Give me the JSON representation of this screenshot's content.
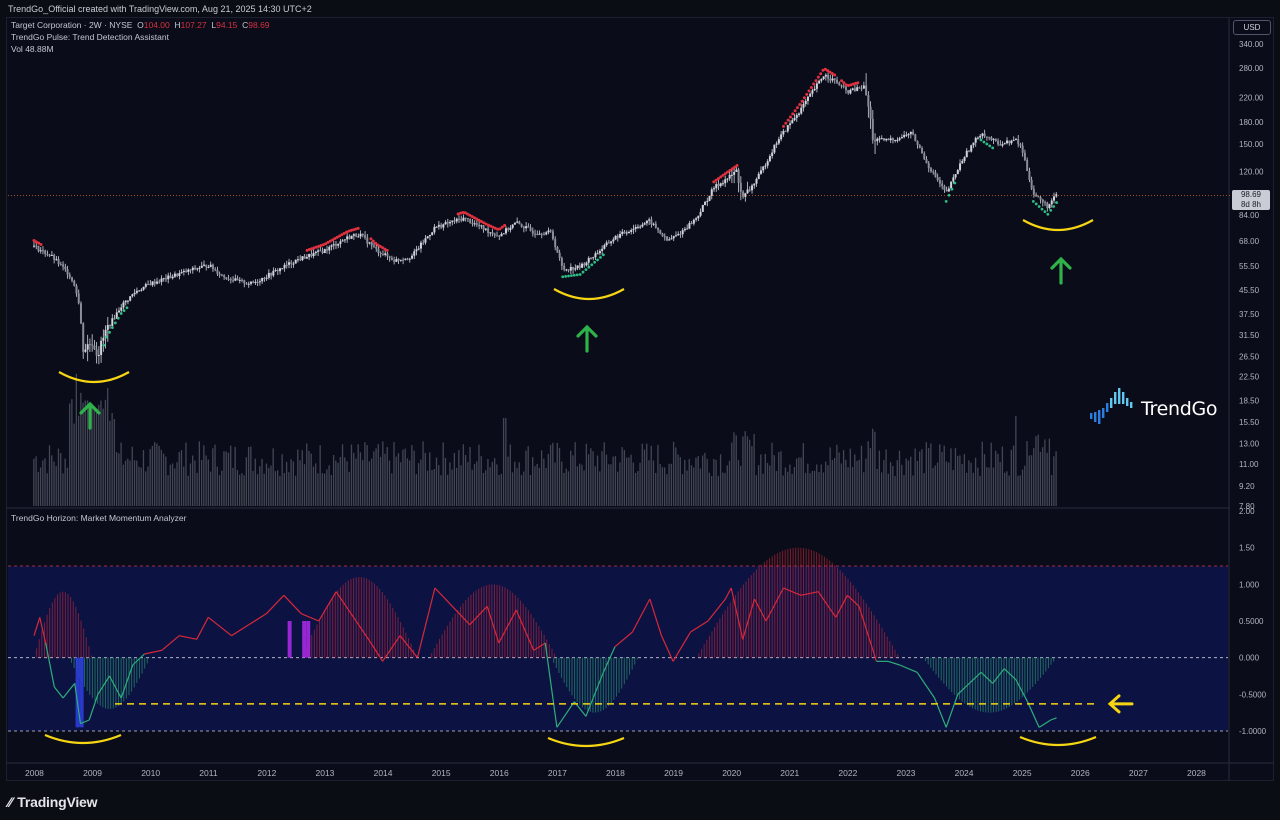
{
  "header": {
    "credit": "TrendGo_Official created with TradingView.com, Aug 21, 2025 14:30 UTC+2"
  },
  "legend": {
    "symbol": "Target Corporation · 2W · NYSE",
    "o_label": "O",
    "o_value": "104.00",
    "h_label": "H",
    "h_value": "107.27",
    "l_label": "L",
    "l_value": "94.15",
    "c_label": "C",
    "c_value": "98.69",
    "indicator": "TrendGo Pulse: Trend Detection Assistant",
    "vol_label": "Vol",
    "vol_value": "48.88M",
    "oscillator": "TrendGo Horizon: Market Momentum Analyzer"
  },
  "currency": "USD",
  "last_price": {
    "value": "98.69",
    "countdown": "8d 8h"
  },
  "brand": "TrendGo",
  "footer_logo": "TradingView",
  "colors": {
    "background": "#0a0d19",
    "bull": "#2ebd85",
    "bear": "#e0313f",
    "candle": "#d1d4dc",
    "annotation_curve": "#f6d514",
    "annotation_arrow": "#2fb24a",
    "osc_bull": "#2fae7a",
    "osc_bear": "#d9283a",
    "osc_zone": "#0e1550",
    "highlight_blue": "#2b3ed8",
    "highlight_purple": "#a629e6"
  },
  "chart_data": [
    {
      "type": "candlestick",
      "title": "Target Corporation · 2W · NYSE",
      "y_scale": "log",
      "ylim": [
        7.8,
        340
      ],
      "y_ticks": [
        "340.00",
        "280.00",
        "220.00",
        "180.00",
        "150.00",
        "120.00",
        "84.00",
        "68.00",
        "55.50",
        "45.50",
        "37.50",
        "31.50",
        "26.50",
        "22.50",
        "18.50",
        "15.50",
        "13.00",
        "11.00",
        "9.20",
        "7.80"
      ],
      "x_ticks": [
        "2008",
        "2009",
        "2010",
        "2011",
        "2012",
        "2013",
        "2014",
        "2015",
        "2016",
        "2017",
        "2018",
        "2019",
        "2020",
        "2021",
        "2022",
        "2023",
        "2024",
        "2025",
        "2026",
        "2027",
        "2028"
      ],
      "price_path": [
        [
          2008.0,
          65
        ],
        [
          2008.3,
          60
        ],
        [
          2008.6,
          52
        ],
        [
          2008.75,
          45
        ],
        [
          2008.85,
          28
        ],
        [
          2009.0,
          30
        ],
        [
          2009.1,
          27
        ],
        [
          2009.25,
          33
        ],
        [
          2009.5,
          40
        ],
        [
          2009.75,
          45
        ],
        [
          2010.0,
          48
        ],
        [
          2010.5,
          52
        ],
        [
          2011.0,
          56
        ],
        [
          2011.25,
          51
        ],
        [
          2011.5,
          49
        ],
        [
          2011.75,
          48
        ],
        [
          2012.0,
          51
        ],
        [
          2012.5,
          58
        ],
        [
          2012.8,
          61
        ],
        [
          2013.0,
          63
        ],
        [
          2013.4,
          70
        ],
        [
          2013.6,
          72
        ],
        [
          2013.9,
          63
        ],
        [
          2014.2,
          58
        ],
        [
          2014.5,
          60
        ],
        [
          2014.9,
          76
        ],
        [
          2015.4,
          82
        ],
        [
          2015.8,
          74
        ],
        [
          2016.0,
          71
        ],
        [
          2016.3,
          79
        ],
        [
          2016.6,
          73
        ],
        [
          2016.9,
          73
        ],
        [
          2017.1,
          54
        ],
        [
          2017.4,
          55
        ],
        [
          2017.7,
          62
        ],
        [
          2018.0,
          70
        ],
        [
          2018.4,
          77
        ],
        [
          2018.6,
          80
        ],
        [
          2018.9,
          68
        ],
        [
          2019.1,
          72
        ],
        [
          2019.4,
          82
        ],
        [
          2019.7,
          105
        ],
        [
          2020.1,
          120
        ],
        [
          2020.2,
          95
        ],
        [
          2020.5,
          118
        ],
        [
          2020.8,
          155
        ],
        [
          2021.2,
          200
        ],
        [
          2021.6,
          265
        ],
        [
          2021.8,
          250
        ],
        [
          2022.0,
          230
        ],
        [
          2022.3,
          240
        ],
        [
          2022.45,
          155
        ],
        [
          2022.7,
          155
        ],
        [
          2022.9,
          158
        ],
        [
          2023.1,
          165
        ],
        [
          2023.4,
          125
        ],
        [
          2023.7,
          100
        ],
        [
          2024.0,
          135
        ],
        [
          2024.3,
          165
        ],
        [
          2024.6,
          150
        ],
        [
          2024.9,
          155
        ],
        [
          2025.0,
          145
        ],
        [
          2025.2,
          100
        ],
        [
          2025.45,
          90
        ],
        [
          2025.6,
          99
        ]
      ],
      "volume_note": "bars, scale unlabeled",
      "oscillator": {
        "name": "TrendGo Horizon: Market Momentum Analyzer",
        "ylim": [
          -1.15,
          2.0
        ],
        "y_ticks": [
          "2.00",
          "1.50",
          "1.000",
          "0.5000",
          "0.000",
          "-0.5000",
          "-1.0000"
        ],
        "levels": [
          1.25,
          0.0,
          -0.5,
          -1.0
        ],
        "line_path": [
          [
            2008.0,
            0.3
          ],
          [
            2008.1,
            0.55
          ],
          [
            2008.2,
            0.2
          ],
          [
            2008.35,
            -0.4
          ],
          [
            2008.5,
            -0.55
          ],
          [
            2008.7,
            -0.35
          ],
          [
            2008.8,
            -0.9
          ],
          [
            2008.95,
            -0.85
          ],
          [
            2009.1,
            -0.5
          ],
          [
            2009.3,
            -0.25
          ],
          [
            2009.5,
            -0.55
          ],
          [
            2009.7,
            -0.1
          ],
          [
            2009.9,
            0.05
          ],
          [
            2010.2,
            0.1
          ],
          [
            2010.5,
            0.3
          ],
          [
            2010.8,
            0.25
          ],
          [
            2011.0,
            0.55
          ],
          [
            2011.4,
            0.3
          ],
          [
            2011.7,
            0.45
          ],
          [
            2012.0,
            0.6
          ],
          [
            2012.3,
            0.85
          ],
          [
            2012.6,
            0.6
          ],
          [
            2012.9,
            0.5
          ],
          [
            2013.2,
            0.9
          ],
          [
            2013.5,
            0.55
          ],
          [
            2013.8,
            0.2
          ],
          [
            2014.0,
            -0.05
          ],
          [
            2014.3,
            0.3
          ],
          [
            2014.6,
            0.0
          ],
          [
            2014.9,
            0.95
          ],
          [
            2015.2,
            0.7
          ],
          [
            2015.5,
            0.45
          ],
          [
            2015.8,
            0.7
          ],
          [
            2016.0,
            0.2
          ],
          [
            2016.3,
            0.65
          ],
          [
            2016.6,
            0.1
          ],
          [
            2016.8,
            0.2
          ],
          [
            2017.0,
            -0.95
          ],
          [
            2017.3,
            -0.6
          ],
          [
            2017.5,
            -0.8
          ],
          [
            2017.8,
            -0.2
          ],
          [
            2018.0,
            0.15
          ],
          [
            2018.3,
            0.35
          ],
          [
            2018.6,
            0.8
          ],
          [
            2018.8,
            0.3
          ],
          [
            2019.0,
            -0.05
          ],
          [
            2019.3,
            0.35
          ],
          [
            2019.6,
            0.5
          ],
          [
            2019.9,
            0.8
          ],
          [
            2020.0,
            0.95
          ],
          [
            2020.2,
            0.25
          ],
          [
            2020.4,
            0.8
          ],
          [
            2020.6,
            0.5
          ],
          [
            2020.9,
            0.95
          ],
          [
            2021.2,
            0.85
          ],
          [
            2021.5,
            0.9
          ],
          [
            2021.8,
            0.55
          ],
          [
            2022.0,
            0.85
          ],
          [
            2022.2,
            0.7
          ],
          [
            2022.4,
            0.2
          ],
          [
            2022.5,
            -0.05
          ],
          [
            2022.7,
            -0.05
          ],
          [
            2022.9,
            -0.1
          ],
          [
            2023.2,
            -0.2
          ],
          [
            2023.5,
            -0.55
          ],
          [
            2023.7,
            -0.95
          ],
          [
            2023.9,
            -0.5
          ],
          [
            2024.1,
            -0.35
          ],
          [
            2024.3,
            -0.2
          ],
          [
            2024.5,
            -0.35
          ],
          [
            2024.7,
            -0.15
          ],
          [
            2024.9,
            -0.3
          ],
          [
            2025.1,
            -0.6
          ],
          [
            2025.3,
            -0.95
          ],
          [
            2025.5,
            -0.85
          ],
          [
            2025.6,
            -0.82
          ]
        ]
      }
    }
  ]
}
